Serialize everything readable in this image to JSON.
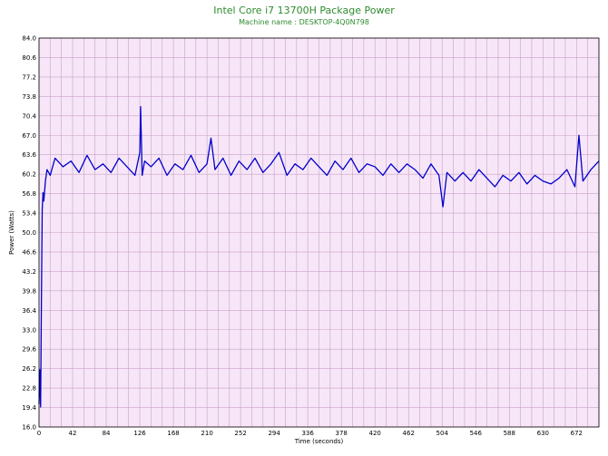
{
  "chart_data": {
    "type": "line",
    "title": "Intel Core i7 13700H Package Power",
    "subtitle": "Machine name : DESKTOP-4Q0N798",
    "xlabel": "Time (seconds)",
    "ylabel": "Power (Watts)",
    "xlim": [
      0,
      700
    ],
    "ylim": [
      16.0,
      84.0
    ],
    "x_ticks": [
      0,
      42,
      84,
      126,
      168,
      210,
      252,
      294,
      336,
      378,
      420,
      462,
      504,
      546,
      588,
      630,
      672
    ],
    "y_ticks": [
      "16.0",
      "19.4",
      "22.8",
      "26.2",
      "29.6",
      "33.0",
      "36.4",
      "39.8",
      "43.2",
      "46.6",
      "50.0",
      "53.4",
      "56.8",
      "60.2",
      "63.6",
      "67.0",
      "70.4",
      "73.8",
      "77.2",
      "80.6",
      "84.0"
    ],
    "grid": true,
    "colors": {
      "plot_bg": "#f7e6f7",
      "grid": "#c8a2c8",
      "line": "#0000cc",
      "title": "#2e8b2e"
    },
    "series": [
      {
        "x": [
          0,
          1,
          2,
          3,
          4,
          5,
          6,
          8,
          10,
          14,
          20,
          30,
          40,
          50,
          60,
          70,
          80,
          90,
          100,
          110,
          120,
          126,
          127,
          129,
          132,
          140,
          150,
          160,
          170,
          180,
          190,
          200,
          210,
          215,
          220,
          230,
          240,
          250,
          260,
          270,
          280,
          290,
          300,
          310,
          320,
          330,
          340,
          350,
          360,
          370,
          380,
          390,
          400,
          410,
          420,
          430,
          440,
          450,
          460,
          470,
          480,
          490,
          500,
          505,
          510,
          520,
          530,
          540,
          550,
          560,
          570,
          580,
          590,
          600,
          610,
          620,
          630,
          640,
          650,
          660,
          670,
          675,
          680,
          690,
          700
        ],
        "y": [
          20.0,
          26.0,
          19.5,
          38.0,
          54.0,
          57.0,
          55.5,
          59.0,
          61.0,
          60.0,
          63.0,
          61.5,
          62.5,
          60.5,
          63.5,
          61.0,
          62.0,
          60.5,
          63.0,
          61.5,
          60.0,
          64.0,
          72.0,
          60.0,
          62.5,
          61.5,
          63.0,
          60.0,
          62.0,
          61.0,
          63.5,
          60.5,
          62.0,
          66.5,
          61.0,
          63.0,
          60.0,
          62.5,
          61.0,
          63.0,
          60.5,
          62.0,
          64.0,
          60.0,
          62.0,
          61.0,
          63.0,
          61.5,
          60.0,
          62.5,
          61.0,
          63.0,
          60.5,
          62.0,
          61.5,
          60.0,
          62.0,
          60.5,
          62.0,
          61.0,
          59.5,
          62.0,
          60.0,
          54.5,
          60.5,
          59.0,
          60.5,
          59.0,
          61.0,
          59.5,
          58.0,
          60.0,
          59.0,
          60.5,
          58.5,
          60.0,
          59.0,
          58.5,
          59.5,
          61.0,
          58.0,
          67.0,
          59.0,
          61.0,
          62.5
        ]
      }
    ]
  }
}
